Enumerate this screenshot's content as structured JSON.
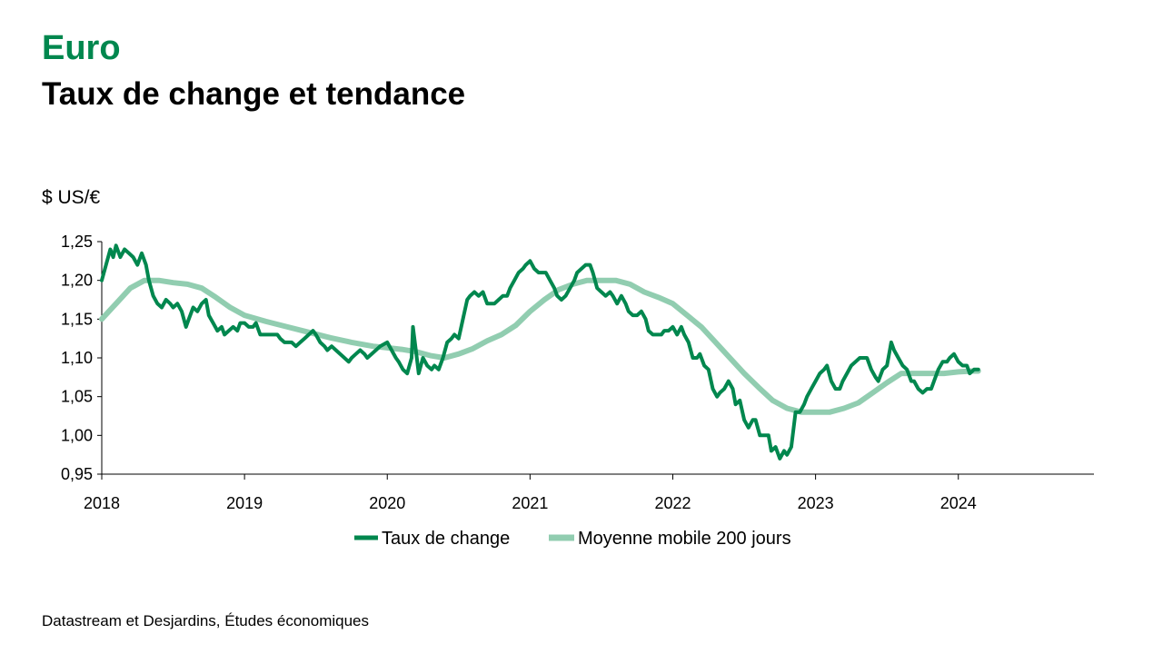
{
  "header": {
    "title": "Euro",
    "subtitle": "Taux de change et tendance",
    "unit": "$ US/€",
    "source": "Datastream et Desjardins, Études économiques"
  },
  "colors": {
    "exchange": "#00874e",
    "moving_avg": "#91cdb0",
    "title": "#00874e"
  },
  "chart_data": {
    "type": "line",
    "title": "Taux de change et tendance",
    "ylabel": "$ US/€",
    "ylim": [
      0.95,
      1.25
    ],
    "yticks": [
      1.25,
      1.2,
      1.15,
      1.1,
      1.05,
      1.0,
      0.95
    ],
    "ytick_labels": [
      "1,25",
      "1,20",
      "1,15",
      "1,10",
      "1,05",
      "1,00",
      "0,95"
    ],
    "xlim": [
      2018,
      2024.95
    ],
    "xticks": [
      2018,
      2019,
      2020,
      2021,
      2022,
      2023,
      2024
    ],
    "xtick_labels": [
      "2018",
      "2019",
      "2020",
      "2021",
      "2022",
      "2023",
      "2024"
    ],
    "grid": false,
    "legend": "bottom",
    "series": [
      {
        "name": "Taux de change",
        "points": [
          [
            2018.0,
            1.2
          ],
          [
            2018.03,
            1.22
          ],
          [
            2018.06,
            1.24
          ],
          [
            2018.08,
            1.23
          ],
          [
            2018.1,
            1.245
          ],
          [
            2018.13,
            1.23
          ],
          [
            2018.16,
            1.24
          ],
          [
            2018.19,
            1.235
          ],
          [
            2018.22,
            1.23
          ],
          [
            2018.25,
            1.22
          ],
          [
            2018.28,
            1.235
          ],
          [
            2018.31,
            1.22
          ],
          [
            2018.33,
            1.2
          ],
          [
            2018.36,
            1.18
          ],
          [
            2018.39,
            1.17
          ],
          [
            2018.42,
            1.165
          ],
          [
            2018.45,
            1.175
          ],
          [
            2018.48,
            1.17
          ],
          [
            2018.5,
            1.165
          ],
          [
            2018.53,
            1.17
          ],
          [
            2018.56,
            1.16
          ],
          [
            2018.59,
            1.14
          ],
          [
            2018.61,
            1.15
          ],
          [
            2018.64,
            1.165
          ],
          [
            2018.67,
            1.16
          ],
          [
            2018.7,
            1.17
          ],
          [
            2018.73,
            1.175
          ],
          [
            2018.75,
            1.155
          ],
          [
            2018.78,
            1.145
          ],
          [
            2018.81,
            1.135
          ],
          [
            2018.84,
            1.14
          ],
          [
            2018.86,
            1.13
          ],
          [
            2018.89,
            1.135
          ],
          [
            2018.92,
            1.14
          ],
          [
            2018.95,
            1.135
          ],
          [
            2018.97,
            1.145
          ],
          [
            2019.0,
            1.145
          ],
          [
            2019.03,
            1.14
          ],
          [
            2019.06,
            1.14
          ],
          [
            2019.08,
            1.145
          ],
          [
            2019.11,
            1.13
          ],
          [
            2019.14,
            1.13
          ],
          [
            2019.17,
            1.13
          ],
          [
            2019.2,
            1.13
          ],
          [
            2019.23,
            1.13
          ],
          [
            2019.25,
            1.125
          ],
          [
            2019.28,
            1.12
          ],
          [
            2019.31,
            1.12
          ],
          [
            2019.33,
            1.12
          ],
          [
            2019.36,
            1.115
          ],
          [
            2019.39,
            1.12
          ],
          [
            2019.42,
            1.125
          ],
          [
            2019.45,
            1.13
          ],
          [
            2019.48,
            1.135
          ],
          [
            2019.5,
            1.13
          ],
          [
            2019.53,
            1.12
          ],
          [
            2019.56,
            1.115
          ],
          [
            2019.58,
            1.11
          ],
          [
            2019.61,
            1.115
          ],
          [
            2019.64,
            1.11
          ],
          [
            2019.67,
            1.105
          ],
          [
            2019.7,
            1.1
          ],
          [
            2019.73,
            1.095
          ],
          [
            2019.75,
            1.1
          ],
          [
            2019.78,
            1.105
          ],
          [
            2019.81,
            1.11
          ],
          [
            2019.84,
            1.105
          ],
          [
            2019.86,
            1.1
          ],
          [
            2019.89,
            1.105
          ],
          [
            2019.92,
            1.11
          ],
          [
            2019.95,
            1.115
          ],
          [
            2020.0,
            1.12
          ],
          [
            2020.03,
            1.11
          ],
          [
            2020.06,
            1.1
          ],
          [
            2020.08,
            1.095
          ],
          [
            2020.11,
            1.085
          ],
          [
            2020.14,
            1.08
          ],
          [
            2020.17,
            1.1
          ],
          [
            2020.18,
            1.14
          ],
          [
            2020.2,
            1.11
          ],
          [
            2020.22,
            1.08
          ],
          [
            2020.25,
            1.1
          ],
          [
            2020.28,
            1.09
          ],
          [
            2020.31,
            1.085
          ],
          [
            2020.33,
            1.09
          ],
          [
            2020.36,
            1.085
          ],
          [
            2020.39,
            1.1
          ],
          [
            2020.42,
            1.12
          ],
          [
            2020.45,
            1.125
          ],
          [
            2020.47,
            1.13
          ],
          [
            2020.5,
            1.125
          ],
          [
            2020.53,
            1.15
          ],
          [
            2020.56,
            1.175
          ],
          [
            2020.58,
            1.18
          ],
          [
            2020.61,
            1.185
          ],
          [
            2020.64,
            1.18
          ],
          [
            2020.67,
            1.185
          ],
          [
            2020.7,
            1.17
          ],
          [
            2020.72,
            1.17
          ],
          [
            2020.75,
            1.17
          ],
          [
            2020.78,
            1.175
          ],
          [
            2020.81,
            1.18
          ],
          [
            2020.84,
            1.18
          ],
          [
            2020.86,
            1.19
          ],
          [
            2020.89,
            1.2
          ],
          [
            2020.92,
            1.21
          ],
          [
            2020.95,
            1.215
          ],
          [
            2020.97,
            1.22
          ],
          [
            2021.0,
            1.225
          ],
          [
            2021.03,
            1.215
          ],
          [
            2021.06,
            1.21
          ],
          [
            2021.08,
            1.21
          ],
          [
            2021.11,
            1.21
          ],
          [
            2021.14,
            1.2
          ],
          [
            2021.17,
            1.19
          ],
          [
            2021.19,
            1.18
          ],
          [
            2021.22,
            1.175
          ],
          [
            2021.25,
            1.18
          ],
          [
            2021.28,
            1.19
          ],
          [
            2021.31,
            1.2
          ],
          [
            2021.33,
            1.21
          ],
          [
            2021.36,
            1.215
          ],
          [
            2021.39,
            1.22
          ],
          [
            2021.42,
            1.22
          ],
          [
            2021.44,
            1.21
          ],
          [
            2021.47,
            1.19
          ],
          [
            2021.5,
            1.185
          ],
          [
            2021.53,
            1.18
          ],
          [
            2021.56,
            1.185
          ],
          [
            2021.58,
            1.18
          ],
          [
            2021.61,
            1.17
          ],
          [
            2021.64,
            1.18
          ],
          [
            2021.67,
            1.17
          ],
          [
            2021.69,
            1.16
          ],
          [
            2021.72,
            1.155
          ],
          [
            2021.75,
            1.155
          ],
          [
            2021.78,
            1.16
          ],
          [
            2021.81,
            1.15
          ],
          [
            2021.83,
            1.135
          ],
          [
            2021.86,
            1.13
          ],
          [
            2021.89,
            1.13
          ],
          [
            2021.92,
            1.13
          ],
          [
            2021.94,
            1.135
          ],
          [
            2021.97,
            1.135
          ],
          [
            2022.0,
            1.14
          ],
          [
            2022.03,
            1.13
          ],
          [
            2022.06,
            1.14
          ],
          [
            2022.08,
            1.13
          ],
          [
            2022.11,
            1.12
          ],
          [
            2022.14,
            1.1
          ],
          [
            2022.17,
            1.1
          ],
          [
            2022.19,
            1.105
          ],
          [
            2022.22,
            1.09
          ],
          [
            2022.25,
            1.085
          ],
          [
            2022.28,
            1.06
          ],
          [
            2022.31,
            1.05
          ],
          [
            2022.33,
            1.055
          ],
          [
            2022.36,
            1.06
          ],
          [
            2022.39,
            1.07
          ],
          [
            2022.42,
            1.06
          ],
          [
            2022.44,
            1.04
          ],
          [
            2022.47,
            1.045
          ],
          [
            2022.5,
            1.02
          ],
          [
            2022.53,
            1.01
          ],
          [
            2022.56,
            1.02
          ],
          [
            2022.58,
            1.02
          ],
          [
            2022.61,
            1.0
          ],
          [
            2022.64,
            1.0
          ],
          [
            2022.67,
            1.0
          ],
          [
            2022.69,
            0.98
          ],
          [
            2022.72,
            0.985
          ],
          [
            2022.75,
            0.97
          ],
          [
            2022.78,
            0.98
          ],
          [
            2022.8,
            0.975
          ],
          [
            2022.83,
            0.985
          ],
          [
            2022.86,
            1.03
          ],
          [
            2022.89,
            1.03
          ],
          [
            2022.92,
            1.04
          ],
          [
            2022.94,
            1.05
          ],
          [
            2022.97,
            1.06
          ],
          [
            2023.0,
            1.07
          ],
          [
            2023.03,
            1.08
          ],
          [
            2023.06,
            1.085
          ],
          [
            2023.08,
            1.09
          ],
          [
            2023.11,
            1.07
          ],
          [
            2023.14,
            1.06
          ],
          [
            2023.17,
            1.06
          ],
          [
            2023.19,
            1.07
          ],
          [
            2023.22,
            1.08
          ],
          [
            2023.25,
            1.09
          ],
          [
            2023.28,
            1.095
          ],
          [
            2023.31,
            1.1
          ],
          [
            2023.33,
            1.1
          ],
          [
            2023.36,
            1.1
          ],
          [
            2023.39,
            1.085
          ],
          [
            2023.42,
            1.075
          ],
          [
            2023.44,
            1.07
          ],
          [
            2023.47,
            1.085
          ],
          [
            2023.5,
            1.09
          ],
          [
            2023.53,
            1.12
          ],
          [
            2023.55,
            1.11
          ],
          [
            2023.58,
            1.1
          ],
          [
            2023.61,
            1.09
          ],
          [
            2023.64,
            1.085
          ],
          [
            2023.67,
            1.07
          ],
          [
            2023.69,
            1.07
          ],
          [
            2023.72,
            1.06
          ],
          [
            2023.75,
            1.055
          ],
          [
            2023.78,
            1.06
          ],
          [
            2023.81,
            1.06
          ],
          [
            2023.83,
            1.07
          ],
          [
            2023.86,
            1.085
          ],
          [
            2023.89,
            1.095
          ],
          [
            2023.92,
            1.095
          ],
          [
            2023.94,
            1.1
          ],
          [
            2023.97,
            1.105
          ],
          [
            2024.0,
            1.095
          ],
          [
            2024.03,
            1.09
          ],
          [
            2024.06,
            1.09
          ],
          [
            2024.08,
            1.08
          ],
          [
            2024.11,
            1.085
          ],
          [
            2024.14,
            1.085
          ]
        ]
      },
      {
        "name": "Moyenne mobile 200 jours",
        "points": [
          [
            2018.0,
            1.15
          ],
          [
            2018.1,
            1.17
          ],
          [
            2018.2,
            1.19
          ],
          [
            2018.3,
            1.2
          ],
          [
            2018.4,
            1.2
          ],
          [
            2018.5,
            1.197
          ],
          [
            2018.6,
            1.195
          ],
          [
            2018.7,
            1.19
          ],
          [
            2018.8,
            1.178
          ],
          [
            2018.9,
            1.165
          ],
          [
            2019.0,
            1.155
          ],
          [
            2019.15,
            1.147
          ],
          [
            2019.3,
            1.14
          ],
          [
            2019.45,
            1.133
          ],
          [
            2019.6,
            1.126
          ],
          [
            2019.75,
            1.12
          ],
          [
            2019.9,
            1.115
          ],
          [
            2020.0,
            1.113
          ],
          [
            2020.1,
            1.111
          ],
          [
            2020.2,
            1.108
          ],
          [
            2020.3,
            1.103
          ],
          [
            2020.4,
            1.1
          ],
          [
            2020.5,
            1.105
          ],
          [
            2020.6,
            1.112
          ],
          [
            2020.7,
            1.122
          ],
          [
            2020.8,
            1.13
          ],
          [
            2020.9,
            1.142
          ],
          [
            2021.0,
            1.16
          ],
          [
            2021.1,
            1.175
          ],
          [
            2021.2,
            1.188
          ],
          [
            2021.3,
            1.195
          ],
          [
            2021.4,
            1.2
          ],
          [
            2021.5,
            1.2
          ],
          [
            2021.6,
            1.2
          ],
          [
            2021.7,
            1.195
          ],
          [
            2021.8,
            1.185
          ],
          [
            2021.9,
            1.178
          ],
          [
            2022.0,
            1.17
          ],
          [
            2022.1,
            1.155
          ],
          [
            2022.2,
            1.14
          ],
          [
            2022.3,
            1.12
          ],
          [
            2022.4,
            1.1
          ],
          [
            2022.5,
            1.08
          ],
          [
            2022.6,
            1.062
          ],
          [
            2022.7,
            1.045
          ],
          [
            2022.8,
            1.035
          ],
          [
            2022.9,
            1.03
          ],
          [
            2023.0,
            1.03
          ],
          [
            2023.1,
            1.03
          ],
          [
            2023.2,
            1.035
          ],
          [
            2023.3,
            1.042
          ],
          [
            2023.4,
            1.055
          ],
          [
            2023.5,
            1.068
          ],
          [
            2023.6,
            1.08
          ],
          [
            2023.7,
            1.08
          ],
          [
            2023.8,
            1.08
          ],
          [
            2023.9,
            1.08
          ],
          [
            2024.0,
            1.082
          ],
          [
            2024.1,
            1.083
          ],
          [
            2024.14,
            1.083
          ]
        ]
      }
    ]
  }
}
